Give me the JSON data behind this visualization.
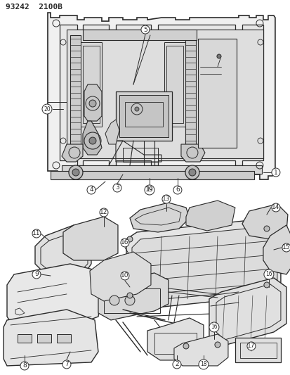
{
  "title_text": "93242  2100B",
  "bg_color": "#ffffff",
  "line_color": "#2a2a2a",
  "label_color": "#1a1a1a",
  "fig_width": 4.14,
  "fig_height": 5.33,
  "dpi": 100
}
